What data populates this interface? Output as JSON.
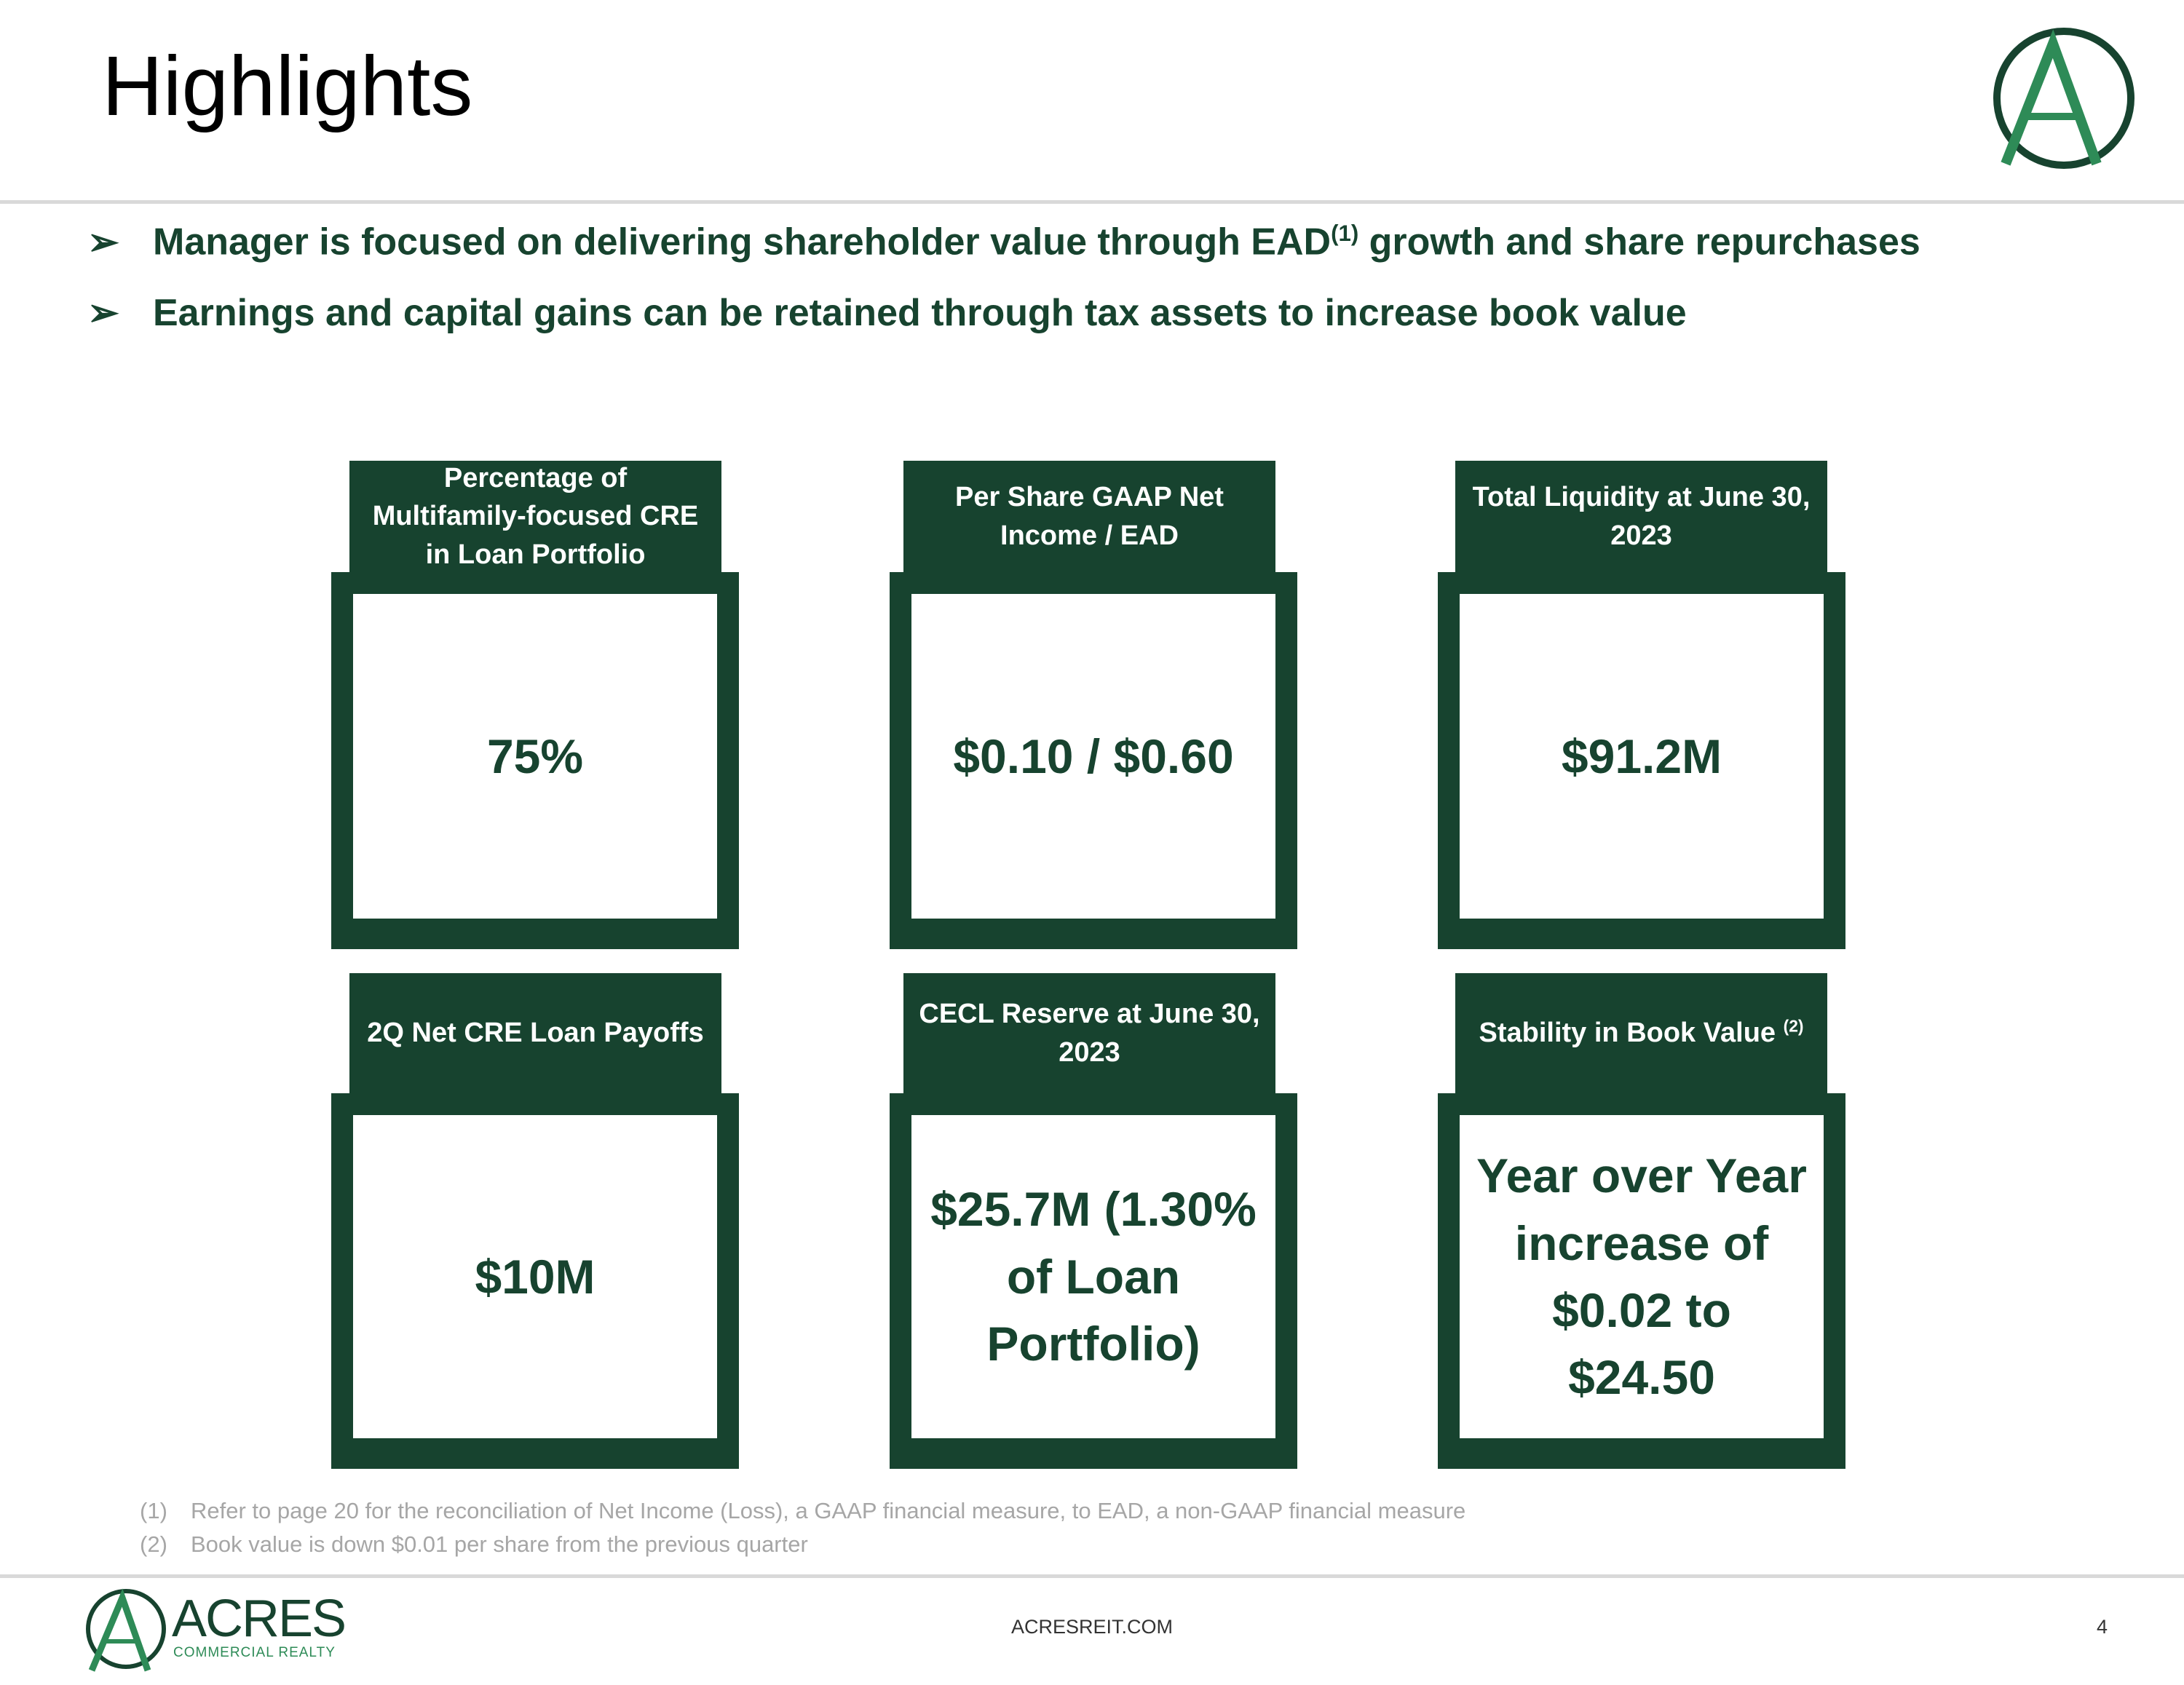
{
  "header": {
    "title": "Highlights"
  },
  "bullets": [
    {
      "text": "Manager is focused on delivering shareholder value through EAD",
      "sup": "(1)",
      "text_after": " growth and share repurchases"
    },
    {
      "text": "Earnings and capital gains can be retained through tax assets to increase book value"
    }
  ],
  "cards": [
    {
      "header": "Percentage of Multifamily-focused CRE in Loan Portfolio",
      "value": "75%"
    },
    {
      "header": "Per Share GAAP Net Income / EAD",
      "value": "$0.10 / $0.60"
    },
    {
      "header": "Total Liquidity at June 30, 2023",
      "value": "$91.2M"
    },
    {
      "header": "2Q Net CRE Loan Payoffs",
      "value": "$10M"
    },
    {
      "header": "CECL Reserve at June 30, 2023",
      "value": "$25.7M (1.30% of Loan Portfolio)"
    },
    {
      "header": "Stability in Book Value",
      "sup": "(2)",
      "value": "Year over Year increase of $0.02 to $24.50"
    }
  ],
  "footnotes": [
    {
      "marker": "(1)",
      "text": "Refer to page 20 for the reconciliation of Net Income (Loss), a GAAP financial measure, to EAD, a non-GAAP financial measure"
    },
    {
      "marker": "(2)",
      "text": "Book value is down $0.01 per share from the previous quarter"
    }
  ],
  "footer": {
    "brand": "ACRES",
    "brand_sub": "COMMERCIAL REALTY",
    "site": "ACRESREIT.COM",
    "page": "4"
  }
}
